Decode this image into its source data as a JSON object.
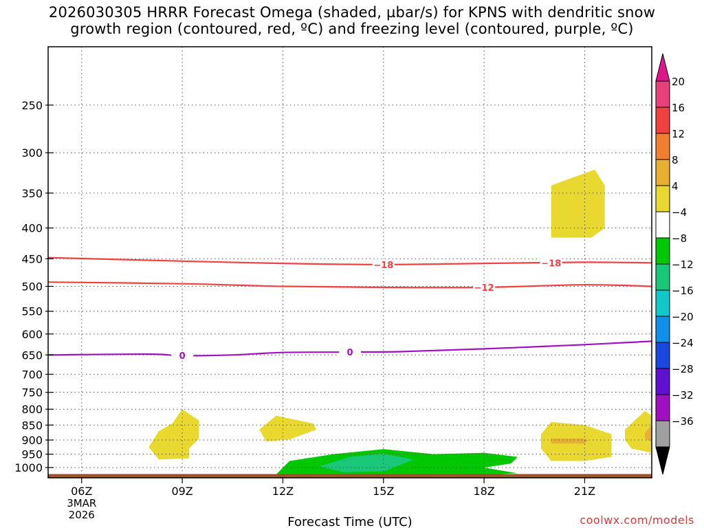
{
  "chart_data": {
    "type": "time-height cross section",
    "title_lines": [
      "2026030305 HRRR Forecast Omega (shaded, µbar/s) for KPNS with dendritic snow",
      "growth region (contoured, red, ºC) and freezing level (contoured, purple, ºC)"
    ],
    "xlabel": "Forecast Time (UTC)",
    "x_ticks": [
      "06Z",
      "09Z",
      "12Z",
      "15Z",
      "18Z",
      "21Z"
    ],
    "x_hours": [
      6,
      9,
      12,
      15,
      18,
      21
    ],
    "x_range_hours": [
      5,
      23
    ],
    "date_label": [
      "3MAR",
      "2026"
    ],
    "y_ticks": [
      250,
      300,
      350,
      400,
      450,
      500,
      550,
      600,
      650,
      700,
      750,
      800,
      850,
      900,
      950,
      1000
    ],
    "y_range_mb": [
      200,
      1040
    ],
    "y_scale": "log-pressure",
    "grid": true,
    "colorbar": {
      "labels": [
        "20",
        "16",
        "12",
        "8",
        "4",
        "−4",
        "−8",
        "−12",
        "−16",
        "−20",
        "−24",
        "−28",
        "−32",
        "−36"
      ],
      "colors": [
        "#e8407a",
        "#f04040",
        "#f08030",
        "#e8b030",
        "#e8d830",
        "#ffffff",
        "#00c800",
        "#18c878",
        "#10c8c8",
        "#1090e8",
        "#1848e0",
        "#6010d0",
        "#a010c0",
        "#a0a0a0"
      ],
      "over_color": "#e0148c",
      "under_color": "#000000"
    },
    "omega_regions": [
      {
        "name": "rising-4-8-a",
        "color": "#e8d830",
        "points": [
          [
            20.0,
            340
          ],
          [
            21.3,
            320
          ],
          [
            21.6,
            340
          ],
          [
            21.6,
            400
          ],
          [
            21.2,
            415
          ],
          [
            20.0,
            415
          ]
        ]
      },
      {
        "name": "rising-4-8-b",
        "color": "#e8d830",
        "points": [
          [
            8.7,
            845
          ],
          [
            9.0,
            800
          ],
          [
            9.5,
            835
          ],
          [
            9.5,
            895
          ],
          [
            9.2,
            930
          ],
          [
            9.2,
            965
          ],
          [
            8.3,
            970
          ],
          [
            8.0,
            925
          ],
          [
            8.3,
            870
          ]
        ]
      },
      {
        "name": "rising-4-8-c",
        "color": "#e8d830",
        "points": [
          [
            11.3,
            865
          ],
          [
            11.8,
            820
          ],
          [
            12.9,
            845
          ],
          [
            13.0,
            865
          ],
          [
            12.2,
            898
          ],
          [
            11.5,
            905
          ]
        ]
      },
      {
        "name": "rising-4-8-d",
        "color": "#e8d830",
        "points": [
          [
            19.7,
            880
          ],
          [
            20.0,
            840
          ],
          [
            21.0,
            850
          ],
          [
            21.8,
            880
          ],
          [
            21.8,
            960
          ],
          [
            21.0,
            975
          ],
          [
            20.0,
            975
          ],
          [
            19.7,
            930
          ]
        ]
      },
      {
        "name": "rising-8-12",
        "color": "#e8b030",
        "points": [
          [
            20.0,
            895
          ],
          [
            21.0,
            895
          ],
          [
            21.1,
            903
          ],
          [
            21.0,
            912
          ],
          [
            20.0,
            912
          ]
        ]
      },
      {
        "name": "rising-4-8-e",
        "color": "#e8d830",
        "points": [
          [
            22.2,
            865
          ],
          [
            22.8,
            805
          ],
          [
            23.0,
            820
          ],
          [
            23.0,
            945
          ],
          [
            22.4,
            930
          ],
          [
            22.2,
            900
          ]
        ]
      },
      {
        "name": "rising-8-12-b",
        "color": "#e8b030",
        "points": [
          [
            22.8,
            875
          ],
          [
            23.0,
            850
          ],
          [
            23.0,
            905
          ],
          [
            22.8,
            895
          ]
        ]
      },
      {
        "name": "sinking-4-8",
        "color": "#00c800",
        "points": [
          [
            11.7,
            1040
          ],
          [
            12.2,
            975
          ],
          [
            13.5,
            950
          ],
          [
            15.0,
            932
          ],
          [
            16.5,
            950
          ],
          [
            18.0,
            945
          ],
          [
            19.0,
            960
          ],
          [
            18.8,
            985
          ],
          [
            18.0,
            1000
          ],
          [
            19.0,
            1022
          ],
          [
            18.0,
            1028
          ],
          [
            15.0,
            1030
          ],
          [
            12.5,
            1035
          ]
        ]
      },
      {
        "name": "sinking-8-12",
        "color": "#18c878",
        "points": [
          [
            13.1,
            995
          ],
          [
            14.0,
            960
          ],
          [
            15.0,
            948
          ],
          [
            15.9,
            970
          ],
          [
            15.0,
            1015
          ],
          [
            13.8,
            1018
          ]
        ]
      }
    ],
    "contours": [
      {
        "name": "dgz-minus-18",
        "label": "−18",
        "color": "#f04040",
        "points": [
          [
            5,
            448
          ],
          [
            9,
            454
          ],
          [
            12,
            458
          ],
          [
            15,
            460
          ],
          [
            18,
            458
          ],
          [
            21,
            456
          ],
          [
            23,
            457
          ]
        ],
        "label_positions": [
          [
            15.0,
            460
          ],
          [
            20.0,
            457
          ]
        ]
      },
      {
        "name": "dgz-minus-12",
        "label": "−12",
        "color": "#f04040",
        "points": [
          [
            5,
            492
          ],
          [
            9,
            495
          ],
          [
            12,
            500
          ],
          [
            15,
            502
          ],
          [
            18,
            502
          ],
          [
            21,
            497
          ],
          [
            23,
            500
          ]
        ],
        "label_positions": [
          [
            18.0,
            502
          ]
        ]
      },
      {
        "name": "freezing-level",
        "label": "0",
        "color": "#a010c0",
        "points": [
          [
            5,
            650
          ],
          [
            8,
            648
          ],
          [
            9,
            652
          ],
          [
            10.5,
            650
          ],
          [
            12,
            644
          ],
          [
            14,
            643
          ],
          [
            15.5,
            642
          ],
          [
            18,
            635
          ],
          [
            21,
            625
          ],
          [
            23,
            617
          ]
        ],
        "label_positions": [
          [
            9.0,
            651
          ],
          [
            14.0,
            643
          ]
        ]
      }
    ],
    "terrain": {
      "color": "#a0522d",
      "top_mb": 1025
    }
  },
  "watermark": "coolwx.com/models"
}
